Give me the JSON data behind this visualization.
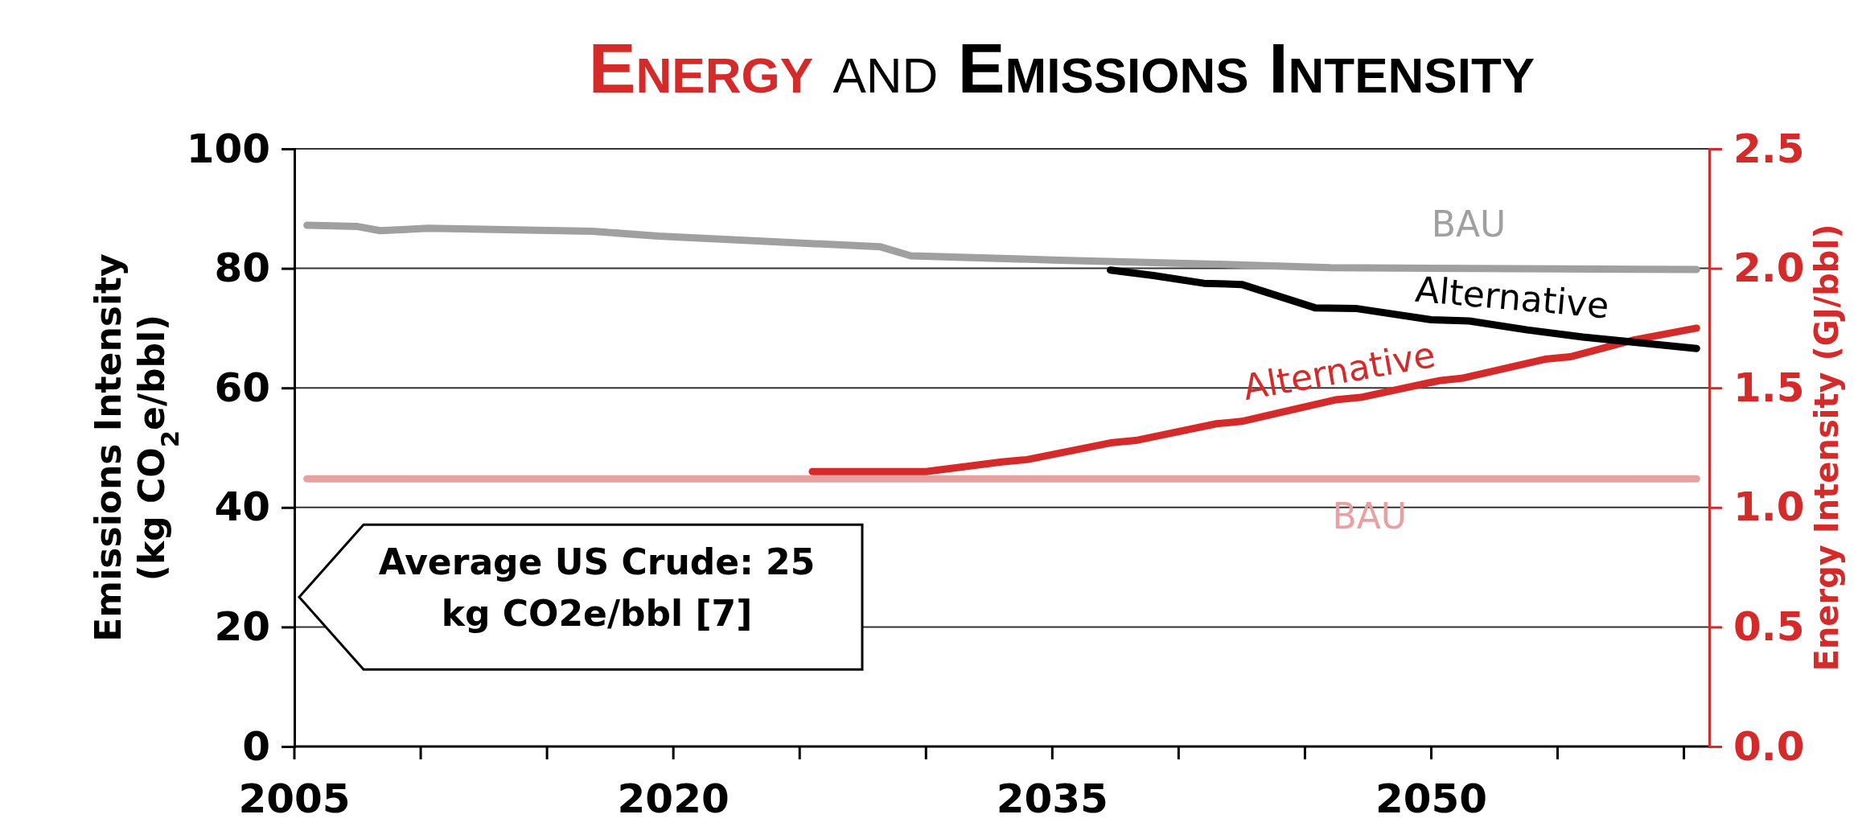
{
  "chart_data": {
    "type": "line",
    "title": "Energy and Emissions Intensity",
    "ylabel": "Emissions Intensity\n(kg CO$_{2}$e/bbl)",
    "y2label": "Energy Intensity (GJ/bbl)",
    "xlim": [
      2005,
      2061
    ],
    "xticks": [
      2005,
      {
        "value": 2010,
        "label": null
      },
      {
        "value": 2015,
        "label": null
      },
      2020,
      {
        "value": 2025,
        "label": null
      },
      {
        "value": 2030,
        "label": null
      },
      2035,
      {
        "value": 2040,
        "label": null
      },
      {
        "value": 2045,
        "label": null
      },
      2050,
      {
        "value": 2055,
        "label": null
      },
      {
        "value": 2060,
        "label": null
      }
    ],
    "ylim": [
      0,
      100
    ],
    "yticks": [
      0,
      20,
      40,
      60,
      80,
      100
    ],
    "y2lim": [
      0,
      2.5
    ],
    "y2ticks": [
      {
        "value": 0,
        "label": "0.0"
      },
      {
        "value": 0.5,
        "label": "0.5"
      },
      {
        "value": 1,
        "label": "1.0"
      },
      {
        "value": 1.5,
        "label": "1.5"
      },
      {
        "value": 2,
        "label": "2.0"
      },
      {
        "value": 2.5,
        "label": "2.5"
      }
    ],
    "grid": "y",
    "line_style": "solid",
    "marker": "none",
    "series": [
      {
        "name": "BAU",
        "color": "#a0a0a0",
        "x": [
          2005.5,
          2007.5,
          2008.4,
          2010.3,
          2016.8,
          2019.4,
          2023.8,
          2028.2,
          2029.4,
          2035,
          2041.5,
          2046,
          2050,
          2055,
          2060.5
        ],
        "values": [
          87.2,
          87,
          86.3,
          86.7,
          86.2,
          85.4,
          84.5,
          83.6,
          82.1,
          81.4,
          80.7,
          80.1,
          80,
          79.9,
          79.8
        ]
      },
      {
        "name": "Alternative",
        "color": "#000000",
        "x": [
          2037.3,
          2039,
          2041,
          2042.5,
          2045.4,
          2047,
          2050,
          2051.5,
          2053.8,
          2056,
          2060.5
        ],
        "values": [
          79.7,
          78.8,
          77.5,
          77.3,
          73.4,
          73.3,
          71.4,
          71.2,
          69.7,
          68.5,
          66.6
        ]
      },
      {
        "name": "Alternative",
        "color": "#d42a2a",
        "axis": "y2",
        "x": [
          2025.5,
          2030,
          2033,
          2034,
          2037.3,
          2038.3,
          2041.5,
          2042.5,
          2046.2,
          2047.2,
          2050.3,
          2051.2,
          2054.5,
          2055.5,
          2058,
          2060.5
        ],
        "values": [
          1.15,
          1.15,
          1.19,
          1.2,
          1.27,
          1.28,
          1.35,
          1.36,
          1.45,
          1.46,
          1.53,
          1.54,
          1.62,
          1.63,
          1.7,
          1.75
        ]
      },
      {
        "name": "BAU",
        "color": "#e8a0a0",
        "axis": "y2",
        "x": [
          2005.5,
          2060.5
        ],
        "values": [
          1.12,
          1.12
        ]
      }
    ],
    "annotations": [
      "Average US Crude: 25\nkg CO2e/bbl [7]"
    ]
  }
}
